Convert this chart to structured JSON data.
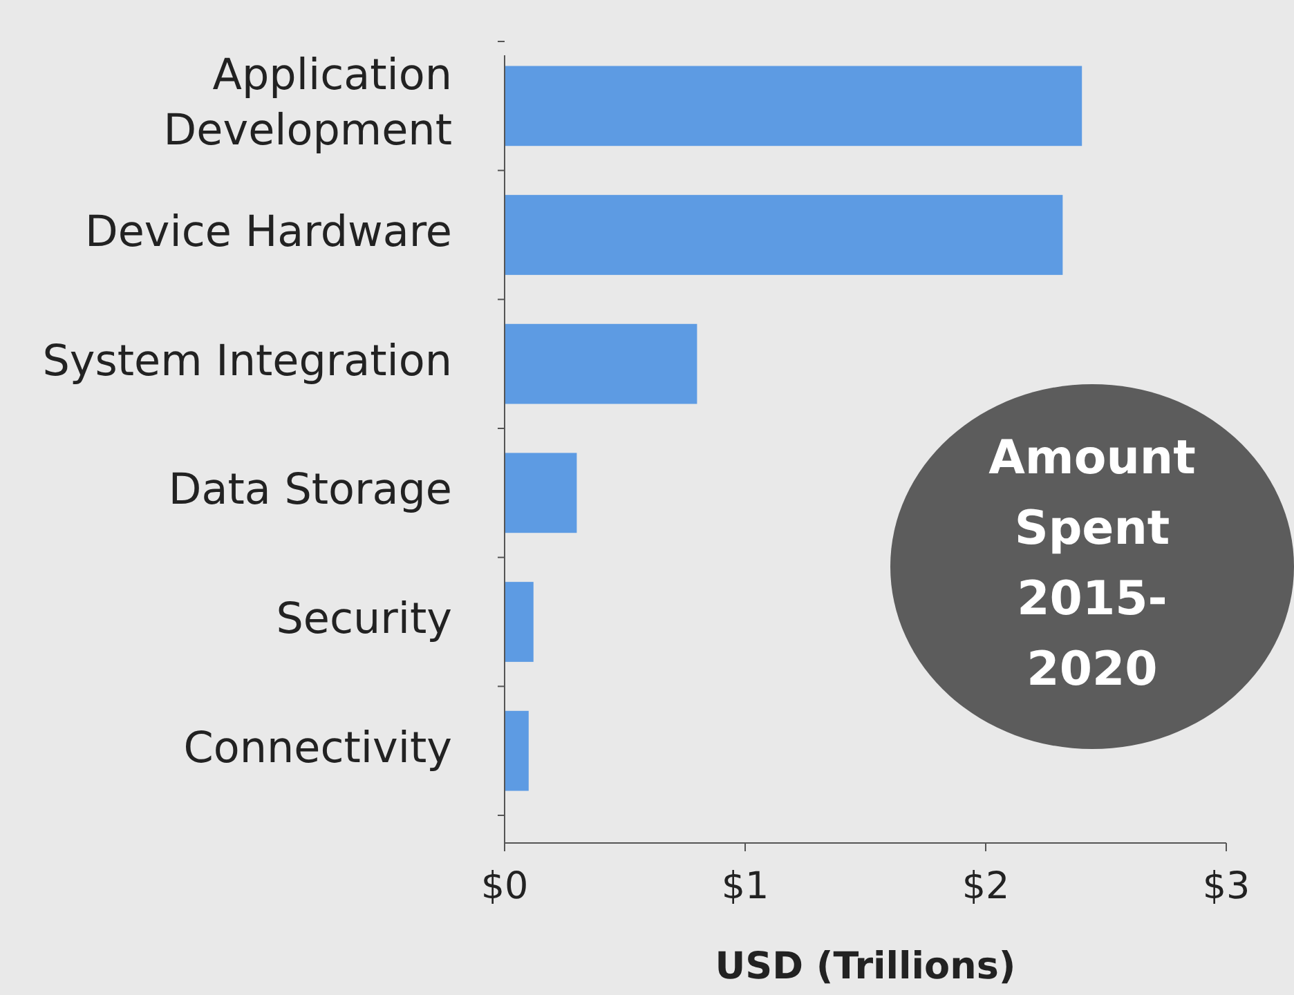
{
  "chart_data": {
    "type": "bar",
    "orientation": "horizontal",
    "xlabel": "USD (Trillions)",
    "categories": [
      "Application Development",
      "Device Hardware",
      "System Integration",
      "Data Storage",
      "Security",
      "Connectivity"
    ],
    "values": [
      2.4,
      2.32,
      0.8,
      0.3,
      0.12,
      0.1
    ],
    "color": "#5d9be3",
    "xlim": [
      0,
      3
    ],
    "xticks": [
      {
        "value": 0,
        "label": "$0"
      },
      {
        "value": 1,
        "label": "$1"
      },
      {
        "value": 2,
        "label": "$2"
      },
      {
        "value": 3,
        "label": "$3"
      }
    ],
    "grid": false,
    "annotations": [
      "Amount Spent 2015-2020"
    ]
  }
}
